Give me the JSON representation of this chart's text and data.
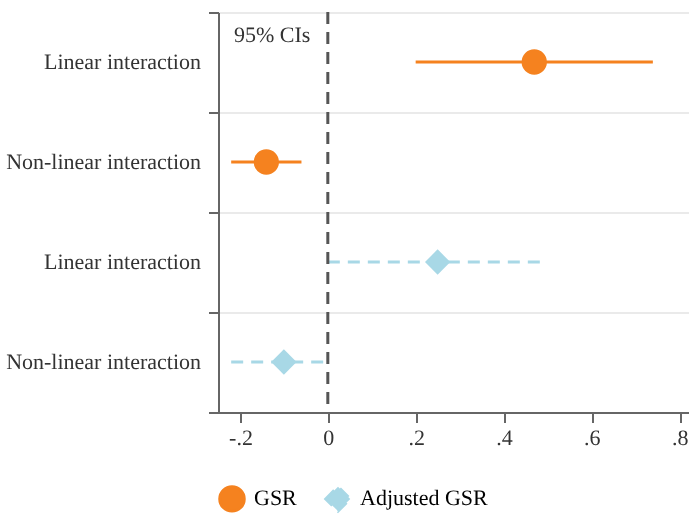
{
  "chart_data": {
    "type": "scatter",
    "orientation": "horizontal",
    "categories": [
      "Linear interaction",
      "Non-linear interaction",
      "Linear interaction",
      "Non-linear interaction"
    ],
    "series": [
      {
        "name": "GSR",
        "color": "#f5821f",
        "marker": "circle",
        "line_style": "solid",
        "values": [
          0.47,
          -0.14,
          null,
          null
        ],
        "errors": [
          [
            0.2,
            0.74
          ],
          [
            -0.22,
            -0.06
          ],
          null,
          null
        ]
      },
      {
        "name": "Adjusted GSR",
        "color": "#a8d8e6",
        "marker": "diamond",
        "line_style": "dashed",
        "values": [
          null,
          null,
          0.25,
          -0.1
        ],
        "errors": [
          null,
          null,
          [
            0.0,
            0.49
          ],
          [
            -0.22,
            0.0
          ]
        ]
      }
    ],
    "xlim": [
      -0.25,
      0.82
    ],
    "xticks": [
      {
        "value": -0.2,
        "label": "-.2"
      },
      0,
      {
        "value": 0.2,
        "label": ".2"
      },
      {
        "value": 0.4,
        "label": ".4"
      },
      {
        "value": 0.6,
        "label": ".6"
      },
      {
        "value": 0.8,
        "label": ".8"
      }
    ],
    "ref_lines": [
      {
        "axis": "x",
        "value": 0,
        "color": "#555555",
        "line_style": "dashed"
      }
    ],
    "annotations": [
      "95% CIs"
    ],
    "grid": "y",
    "legend": "bottom"
  }
}
